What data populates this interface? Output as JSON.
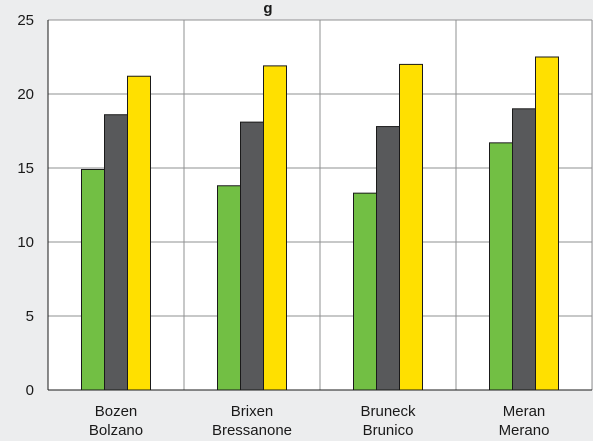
{
  "chart_data": {
    "type": "bar",
    "title_fragment": "g",
    "categories": [
      [
        "Bozen",
        "Bolzano"
      ],
      [
        "Brixen",
        "Bressanone"
      ],
      [
        "Bruneck",
        "Brunico"
      ],
      [
        "Meran",
        "Merano"
      ]
    ],
    "series": [
      {
        "color": "#72bf44",
        "values": [
          14.9,
          13.8,
          13.3,
          16.7
        ]
      },
      {
        "color": "#58595b",
        "values": [
          18.6,
          18.1,
          17.8,
          19.0
        ]
      },
      {
        "color": "#ffe000",
        "values": [
          21.2,
          21.9,
          22.0,
          22.5
        ]
      }
    ],
    "ylim": [
      0,
      25
    ],
    "yticks": [
      "0",
      "5",
      "10",
      "15",
      "20",
      "25"
    ],
    "grid": true,
    "plot_background": "#ffffff",
    "page_background": "#ecedee"
  }
}
